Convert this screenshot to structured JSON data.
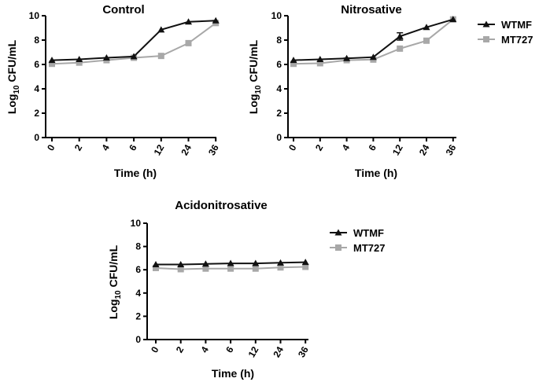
{
  "colors": {
    "series_dark": "#111111",
    "series_light": "#a8a8a8",
    "axis": "#000000"
  },
  "chart_data": [
    {
      "type": "line",
      "title": "Control",
      "xlabel": "Time (h)",
      "ylabel_base": "Log",
      "ylabel_sub": "10",
      "ylabel_rest": " CFU/mL",
      "categories": [
        "0",
        "2",
        "4",
        "6",
        "12",
        "24",
        "36"
      ],
      "ylim": [
        0,
        10
      ],
      "yticks": [
        0,
        2,
        4,
        6,
        8,
        10
      ],
      "legend": "top-right",
      "series": [
        {
          "name": "WTMF",
          "marker": "triangle",
          "values": [
            6.35,
            6.42,
            6.55,
            6.65,
            8.85,
            9.5,
            9.6
          ]
        },
        {
          "name": "MT727",
          "marker": "square",
          "values": [
            6.05,
            6.15,
            6.35,
            6.55,
            6.7,
            7.75,
            9.4
          ]
        }
      ]
    },
    {
      "type": "line",
      "title": "Nitrosative",
      "xlabel": "Time (h)",
      "ylabel_base": "Log",
      "ylabel_sub": "10",
      "ylabel_rest": " CFU/mL",
      "categories": [
        "0",
        "2",
        "4",
        "6",
        "12",
        "24",
        "36"
      ],
      "ylim": [
        0,
        10
      ],
      "yticks": [
        0,
        2,
        4,
        6,
        8,
        10
      ],
      "legend": "right",
      "series": [
        {
          "name": "WTMF",
          "marker": "triangle",
          "values": [
            6.35,
            6.42,
            6.5,
            6.6,
            8.3,
            9.05,
            9.7
          ],
          "error": [
            0,
            0,
            0,
            0,
            0.3,
            0,
            0
          ]
        },
        {
          "name": "MT727",
          "marker": "square",
          "values": [
            6.05,
            6.1,
            6.35,
            6.4,
            7.3,
            7.95,
            9.7
          ]
        }
      ]
    },
    {
      "type": "line",
      "title": "Acidonitrosative",
      "xlabel": "Time (h)",
      "ylabel_base": "Log",
      "ylabel_sub": "10",
      "ylabel_rest": " CFU/mL",
      "categories": [
        "0",
        "2",
        "4",
        "6",
        "12",
        "24",
        "36"
      ],
      "ylim": [
        0,
        10
      ],
      "yticks": [
        0,
        2,
        4,
        6,
        8,
        10
      ],
      "legend": "right",
      "series": [
        {
          "name": "WTMF",
          "marker": "triangle",
          "values": [
            6.45,
            6.45,
            6.5,
            6.55,
            6.55,
            6.6,
            6.65
          ]
        },
        {
          "name": "MT727",
          "marker": "square",
          "values": [
            6.15,
            6.05,
            6.1,
            6.1,
            6.1,
            6.2,
            6.25
          ]
        }
      ]
    }
  ]
}
